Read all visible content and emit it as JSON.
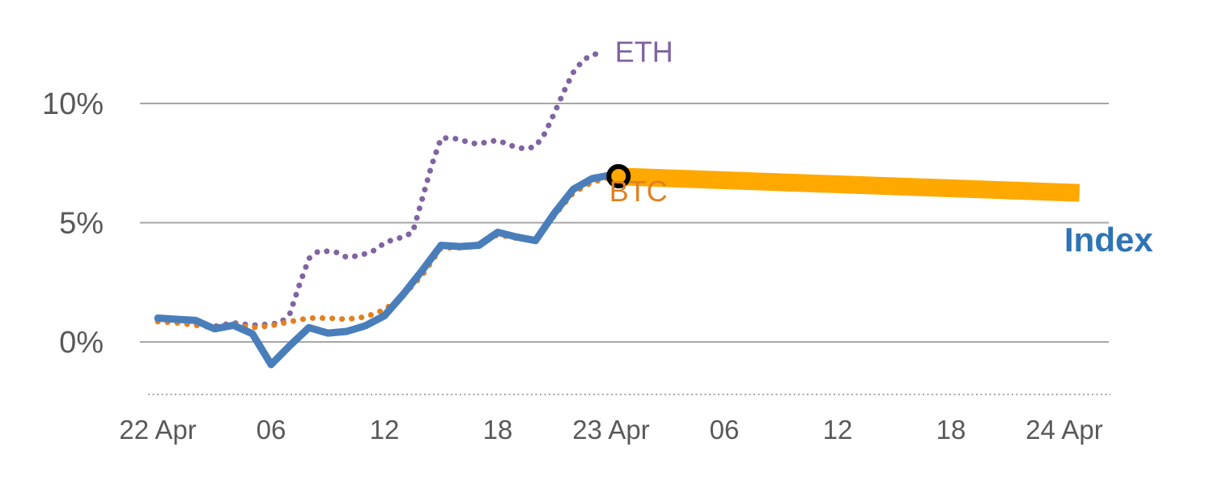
{
  "chart_data": {
    "type": "line",
    "title": "",
    "xlabel": "",
    "ylabel": "",
    "x_unit": "hours from 22 Apr 00:00",
    "ylim": [
      -2,
      13
    ],
    "grid": "horizontal",
    "legend_position": "inline-labels",
    "colors": {
      "background": "#ffffff",
      "grid": "#a6a6a6",
      "axis_text": "#595959",
      "eth": "#8064a2",
      "btc": "#e2801f",
      "index": "#4a7ebb",
      "index_label": "#2e74b5",
      "highlight_band": "#ffa800",
      "marker": "#000000"
    },
    "y_ticks": [
      {
        "value": 0,
        "label": "0%"
      },
      {
        "value": 5,
        "label": "5%"
      },
      {
        "value": 10,
        "label": "10%"
      }
    ],
    "x_ticks": [
      {
        "t": 0,
        "label": "22 Apr"
      },
      {
        "t": 6,
        "label": "06"
      },
      {
        "t": 12,
        "label": "12"
      },
      {
        "t": 18,
        "label": "18"
      },
      {
        "t": 24,
        "label": "23 Apr"
      },
      {
        "t": 30,
        "label": "06"
      },
      {
        "t": 36,
        "label": "12"
      },
      {
        "t": 42,
        "label": "18"
      },
      {
        "t": 48,
        "label": "24 Apr"
      }
    ],
    "series": [
      {
        "name": "ETH",
        "style": "dotted",
        "color": "#8064a2",
        "points": [
          [
            0,
            0.9
          ],
          [
            1,
            0.85
          ],
          [
            2,
            0.75
          ],
          [
            3,
            0.65
          ],
          [
            4,
            0.8
          ],
          [
            5,
            0.7
          ],
          [
            6,
            0.75
          ],
          [
            6.5,
            0.8
          ],
          [
            7,
            1.2
          ],
          [
            7.5,
            2.4
          ],
          [
            8,
            3.5
          ],
          [
            8.5,
            3.8
          ],
          [
            9,
            3.8
          ],
          [
            9.5,
            3.75
          ],
          [
            10,
            3.55
          ],
          [
            10.5,
            3.6
          ],
          [
            11,
            3.7
          ],
          [
            11.5,
            3.85
          ],
          [
            12,
            4.15
          ],
          [
            12.5,
            4.3
          ],
          [
            13,
            4.4
          ],
          [
            13.5,
            4.6
          ],
          [
            14,
            6.0
          ],
          [
            14.5,
            7.4
          ],
          [
            15,
            8.55
          ],
          [
            15.5,
            8.55
          ],
          [
            16,
            8.5
          ],
          [
            16.5,
            8.35
          ],
          [
            17,
            8.3
          ],
          [
            17.5,
            8.4
          ],
          [
            18,
            8.45
          ],
          [
            18.5,
            8.3
          ],
          [
            19,
            8.15
          ],
          [
            19.5,
            8.1
          ],
          [
            20,
            8.2
          ],
          [
            20.5,
            8.75
          ],
          [
            21,
            9.6
          ],
          [
            21.5,
            10.5
          ],
          [
            22,
            11.3
          ],
          [
            22.5,
            11.8
          ],
          [
            23,
            12.05
          ],
          [
            23.5,
            12.1
          ]
        ]
      },
      {
        "name": "BTC",
        "style": "dotted",
        "color": "#e2801f",
        "points": [
          [
            0,
            0.85
          ],
          [
            1,
            0.8
          ],
          [
            2,
            0.7
          ],
          [
            3,
            0.6
          ],
          [
            4,
            0.75
          ],
          [
            5,
            0.6
          ],
          [
            6,
            0.68
          ],
          [
            7,
            0.85
          ],
          [
            8,
            1.0
          ],
          [
            9,
            1.0
          ],
          [
            10,
            0.95
          ],
          [
            11,
            1.05
          ],
          [
            12,
            1.35
          ],
          [
            13,
            1.95
          ],
          [
            14,
            2.8
          ],
          [
            15,
            3.95
          ],
          [
            16,
            3.95
          ],
          [
            17,
            4.1
          ],
          [
            18,
            4.5
          ],
          [
            19,
            4.35
          ],
          [
            20,
            4.3
          ],
          [
            21,
            5.3
          ],
          [
            22,
            6.25
          ],
          [
            23,
            6.7
          ],
          [
            24,
            6.9
          ]
        ]
      },
      {
        "name": "Index",
        "style": "solid",
        "color": "#4a7ebb",
        "points": [
          [
            0,
            1.0
          ],
          [
            1,
            0.95
          ],
          [
            2,
            0.9
          ],
          [
            3,
            0.55
          ],
          [
            4,
            0.7
          ],
          [
            5,
            0.35
          ],
          [
            6,
            -0.95
          ],
          [
            7,
            -0.15
          ],
          [
            8,
            0.6
          ],
          [
            9,
            0.37
          ],
          [
            10,
            0.44
          ],
          [
            11,
            0.68
          ],
          [
            12,
            1.1
          ],
          [
            13,
            2.0
          ],
          [
            14,
            3.0
          ],
          [
            15,
            4.05
          ],
          [
            16,
            4.0
          ],
          [
            17,
            4.05
          ],
          [
            18,
            4.6
          ],
          [
            19,
            4.4
          ],
          [
            20,
            4.25
          ],
          [
            21,
            5.4
          ],
          [
            22,
            6.4
          ],
          [
            23,
            6.85
          ],
          [
            24,
            7.0
          ]
        ]
      },
      {
        "name": "Index-highlight",
        "style": "band",
        "color": "#ffa800",
        "points": [
          [
            24,
            6.95
          ],
          [
            48.8,
            6.25
          ]
        ]
      }
    ],
    "marker": {
      "t": 24.4,
      "value": 6.95,
      "shape": "open-circle",
      "color": "#000000"
    },
    "annotations": [
      {
        "text": "ETH",
        "t": 24.2,
        "value": 12.15,
        "color": "#8064a2",
        "weight": "normal"
      },
      {
        "text": "BTC",
        "t": 23.9,
        "value": 6.3,
        "color": "#e2801f",
        "weight": "normal"
      },
      {
        "text": "Index",
        "t": 48.0,
        "value": 4.3,
        "color": "#2e74b5",
        "weight": "bold"
      }
    ]
  }
}
